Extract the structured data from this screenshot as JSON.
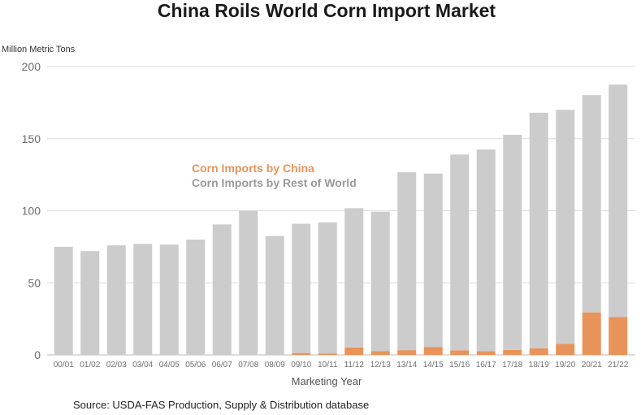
{
  "chart_data": {
    "type": "bar",
    "stacked": true,
    "title": "China Roils World Corn Import Market",
    "ylabel": "Million Metric Tons",
    "xlabel": "Marketing Year",
    "source": "Source: USDA-FAS Production, Supply & Distribution database",
    "ylim": [
      0,
      200
    ],
    "yticks": [
      0,
      50,
      100,
      150,
      200
    ],
    "grid": true,
    "legend_position": "center-left",
    "categories": [
      "00/01",
      "01/02",
      "02/03",
      "03/04",
      "04/05",
      "05/06",
      "06/07",
      "07/08",
      "08/09",
      "09/10",
      "10/11",
      "11/12",
      "12/13",
      "13/14",
      "14/15",
      "15/16",
      "16/17",
      "17/18",
      "18/19",
      "19/20",
      "20/21",
      "21/22"
    ],
    "series": [
      {
        "name": "Corn Imports by China",
        "color": "#e8935a",
        "values": [
          0,
          0,
          0,
          0,
          0,
          0,
          0,
          0,
          0,
          1.3,
          1.0,
          5.2,
          2.7,
          3.3,
          5.5,
          3.2,
          2.5,
          3.5,
          4.5,
          7.6,
          29.5,
          26.2
        ]
      },
      {
        "name": "Corn Imports by Rest of World",
        "color": "#cccccc",
        "values": [
          75,
          72,
          76,
          77,
          76.5,
          80,
          90.5,
          100,
          82.5,
          89.7,
          91,
          96.6,
          96.6,
          123.4,
          120.3,
          135.8,
          140,
          149.2,
          163.5,
          162.4,
          150.7,
          161.3
        ]
      }
    ]
  }
}
